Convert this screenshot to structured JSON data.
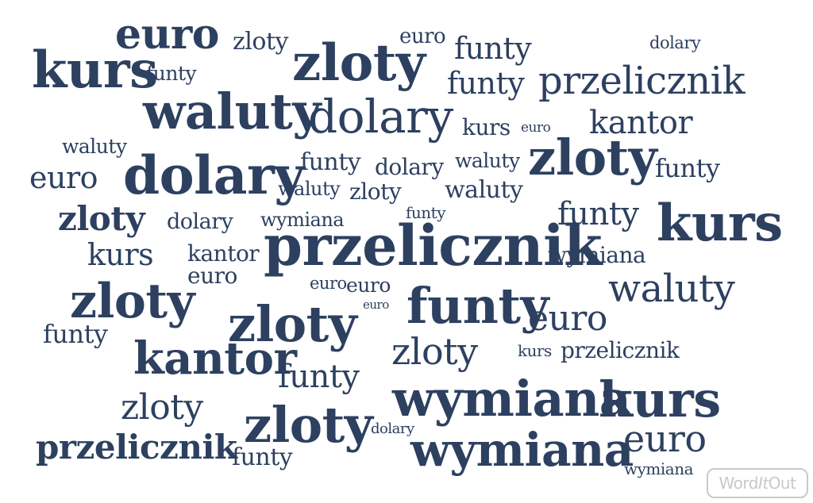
{
  "colors": {
    "word": "#2d4060",
    "background": "#ffffff",
    "logo": "#c9c9c9"
  },
  "words": [
    "euro",
    "zloty",
    "euro",
    "funty",
    "dolary",
    "kurs",
    "funty",
    "zloty",
    "funty",
    "przelicznik",
    "waluty",
    "dolary",
    "kurs",
    "euro",
    "kantor",
    "waluty",
    "euro",
    "dolary",
    "funty",
    "dolary",
    "waluty",
    "zloty",
    "funty",
    "waluty",
    "zloty",
    "waluty",
    "zloty",
    "dolary",
    "wymiana",
    "funty",
    "funty",
    "kurs",
    "kurs",
    "kantor",
    "przelicznik",
    "wymiana",
    "euro",
    "zloty",
    "euro",
    "euro",
    "euro",
    "waluty",
    "funty",
    "euro",
    "zloty",
    "funty",
    "zloty",
    "kurs",
    "przelicznik",
    "kantor",
    "funty",
    "zloty",
    "wymiana",
    "kurs",
    "zloty",
    "zloty",
    "dolary",
    "euro",
    "przelicznik",
    "funty",
    "wymiana",
    "wymiana"
  ],
  "logo": {
    "word": "Word",
    "it": "It",
    "out": "Out"
  }
}
